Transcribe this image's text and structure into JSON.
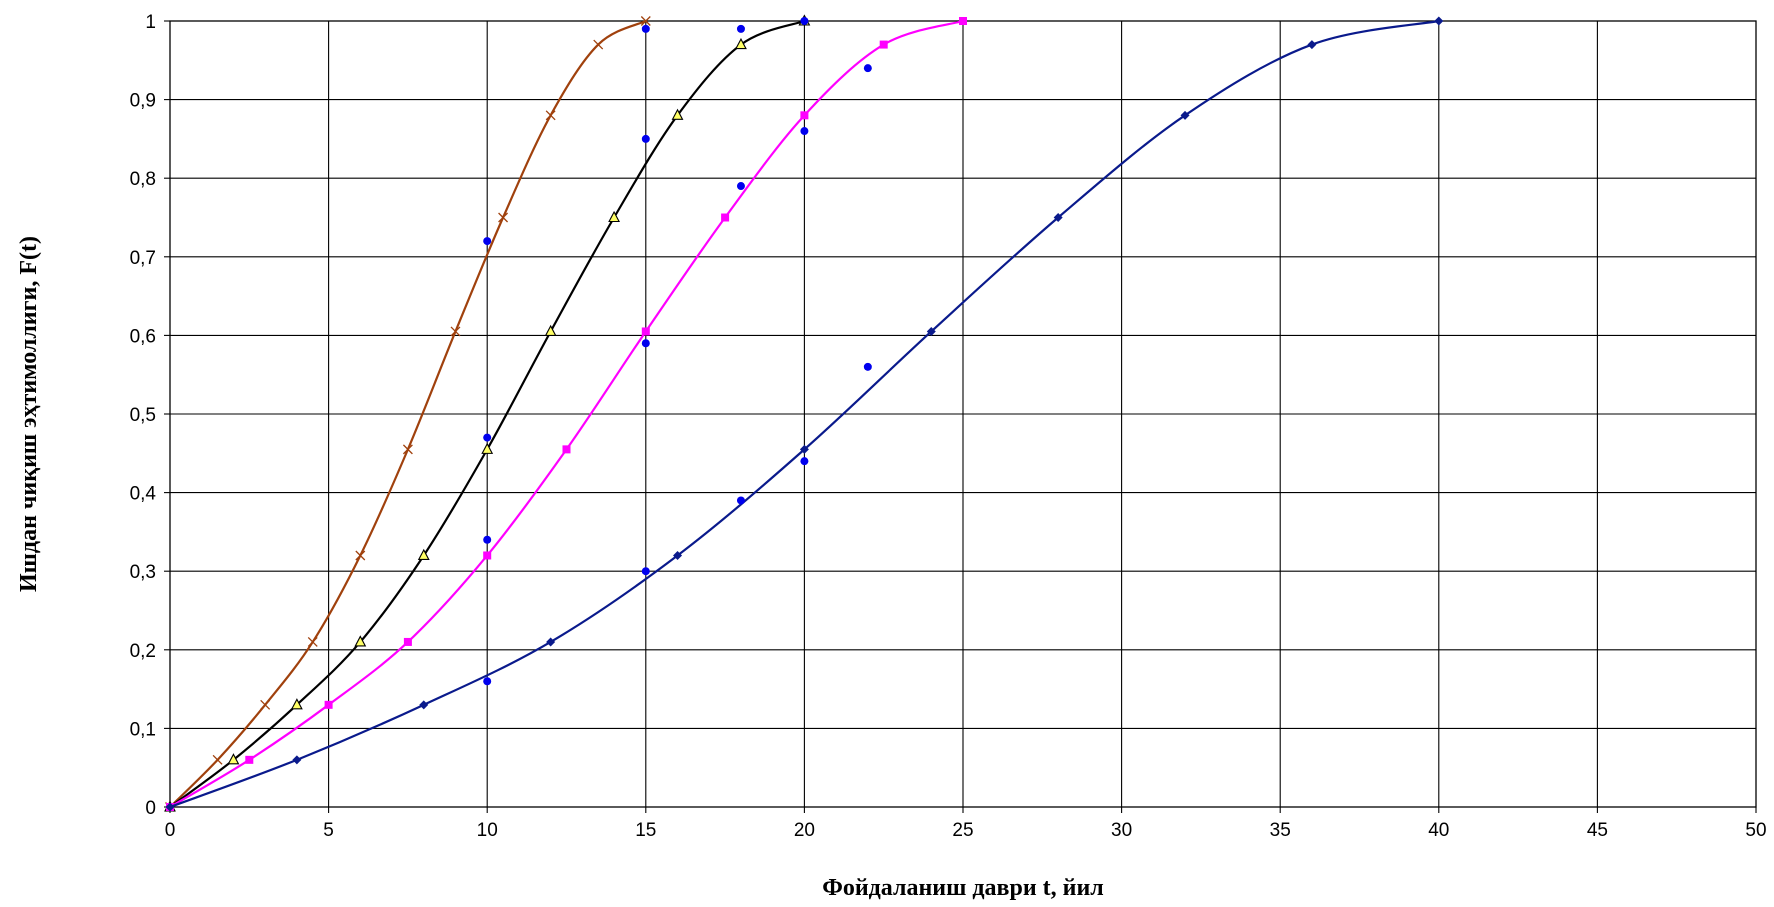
{
  "chart_data": {
    "type": "line",
    "title": "",
    "xlabel": "Фойдаланиш даври t, йил",
    "ylabel": "Ишдан чиқиш эҳтимоллиги, F(t)",
    "xlim": [
      0,
      50
    ],
    "ylim": [
      0,
      1
    ],
    "grid": true,
    "legend": "none",
    "xticks": [
      0,
      5,
      10,
      15,
      20,
      25,
      30,
      35,
      40,
      45,
      50
    ],
    "xtick_labels": [
      "0",
      "5",
      "10",
      "15",
      "20",
      "25",
      "30",
      "35",
      "40",
      "45",
      "50"
    ],
    "yticks": [
      0,
      0.1,
      0.2,
      0.3,
      0.4,
      0.5,
      0.6,
      0.7,
      0.8,
      0.9,
      1
    ],
    "ytick_labels": [
      "0",
      "0,1",
      "0,2",
      "0,3",
      "0,4",
      "0,5",
      "0,6",
      "0,7",
      "0,8",
      "0,9",
      "1"
    ],
    "series": [
      {
        "color": "#A0410D",
        "marker": "x",
        "x": [
          0,
          1.5,
          3,
          4.5,
          6,
          7.5,
          9,
          10.5,
          12,
          13.5,
          15
        ],
        "y": [
          0,
          0.06,
          0.13,
          0.21,
          0.32,
          0.455,
          0.605,
          0.75,
          0.88,
          0.97,
          1
        ]
      },
      {
        "color": "#000000",
        "marker_fill": "#FFFF66",
        "marker": "triangle",
        "x": [
          0,
          2,
          4,
          6,
          8,
          10,
          12,
          14,
          16,
          18,
          20
        ],
        "y": [
          0,
          0.06,
          0.13,
          0.21,
          0.32,
          0.455,
          0.605,
          0.75,
          0.88,
          0.97,
          1
        ]
      },
      {
        "color": "#FF00FF",
        "marker": "square",
        "x": [
          0,
          2.5,
          5,
          7.5,
          10,
          12.5,
          15,
          17.5,
          20,
          22.5,
          25
        ],
        "y": [
          0,
          0.06,
          0.13,
          0.21,
          0.32,
          0.455,
          0.605,
          0.75,
          0.88,
          0.97,
          1
        ]
      },
      {
        "color": "#0A1A8C",
        "marker": "diamond",
        "x": [
          0,
          4,
          8,
          12,
          16,
          20,
          24,
          28,
          32,
          36,
          40
        ],
        "y": [
          0,
          0.06,
          0.13,
          0.21,
          0.32,
          0.455,
          0.605,
          0.75,
          0.88,
          0.97,
          1
        ]
      }
    ],
    "scatter": {
      "color": "#0000EE",
      "marker": "circle",
      "x": [
        10,
        10,
        10,
        10,
        15,
        15,
        15,
        15,
        18,
        18,
        18,
        20,
        20,
        20,
        22,
        22
      ],
      "y": [
        0.16,
        0.34,
        0.47,
        0.72,
        0.3,
        0.59,
        0.85,
        0.99,
        0.39,
        0.79,
        0.99,
        0.44,
        0.86,
        1,
        0.56,
        0.94
      ]
    }
  }
}
